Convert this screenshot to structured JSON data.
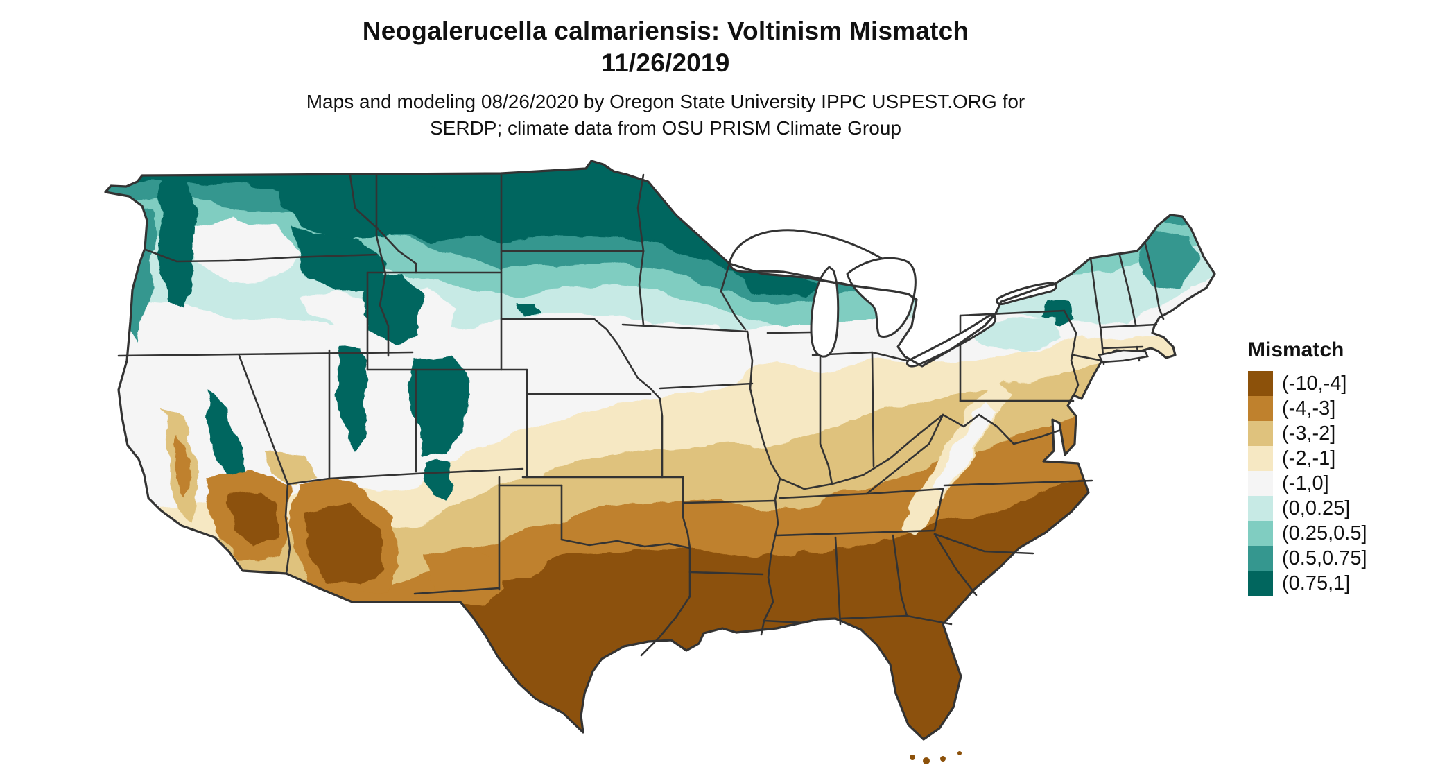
{
  "header": {
    "title_line1": "Neogalerucella calmariensis: Voltinism Mismatch",
    "title_line2": "11/26/2019",
    "subtitle_line1": "Maps and modeling 08/26/2020 by Oregon State University IPPC USPEST.ORG for",
    "subtitle_line2": "SERDP; climate data from OSU PRISM Climate Group"
  },
  "legend": {
    "title": "Mismatch",
    "items": [
      {
        "label": "(-10,-4]",
        "color": "#8C510A"
      },
      {
        "label": "(-4,-3]",
        "color": "#BF812D"
      },
      {
        "label": "(-3,-2]",
        "color": "#DFC27D"
      },
      {
        "label": "(-2,-1]",
        "color": "#F6E8C3"
      },
      {
        "label": "(-1,0]",
        "color": "#F5F5F5"
      },
      {
        "label": "(0,0.25]",
        "color": "#C7EAE5"
      },
      {
        "label": "(0.25,0.5]",
        "color": "#80CDC1"
      },
      {
        "label": "(0.5,0.75]",
        "color": "#35978F"
      },
      {
        "label": "(0.75,1]",
        "color": "#01665E"
      }
    ]
  },
  "map": {
    "region": "Contiguous United States",
    "kind": "classified raster choropleth with state borders",
    "border_color": "#333333",
    "lake_color": "#FFFFFF",
    "background": "#FFFFFF"
  }
}
